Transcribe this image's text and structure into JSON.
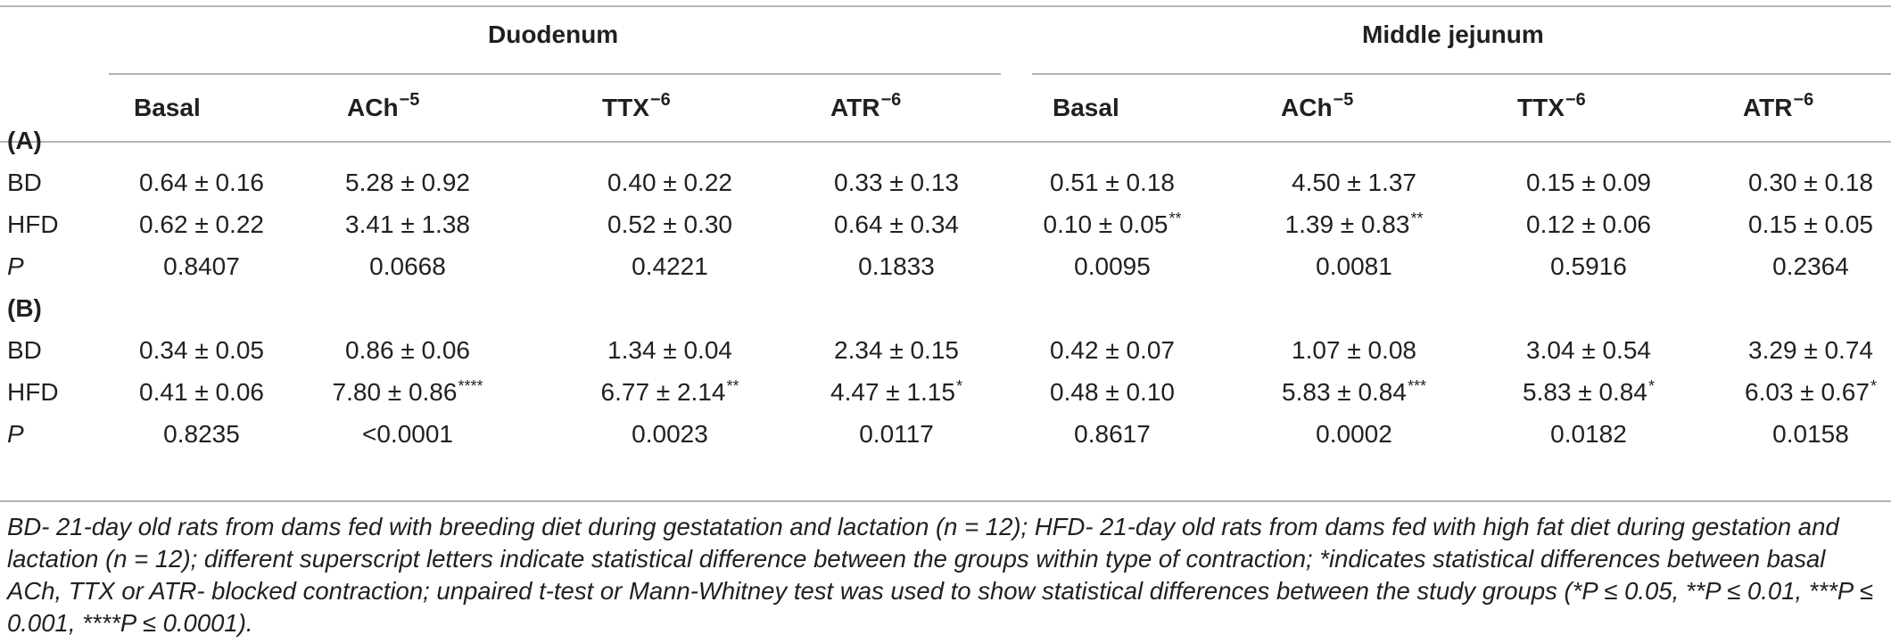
{
  "groups": {
    "duodenum": "Duodenum",
    "jejunum": "Middle jejunum"
  },
  "columns": [
    {
      "base": "Basal",
      "exp": ""
    },
    {
      "base": "ACh",
      "exp": "−5"
    },
    {
      "base": "TTX",
      "exp": "−6"
    },
    {
      "base": "ATR",
      "exp": "−6"
    },
    {
      "base": "Basal",
      "exp": ""
    },
    {
      "base": "ACh",
      "exp": "−5"
    },
    {
      "base": "TTX",
      "exp": "−6"
    },
    {
      "base": "ATR",
      "exp": "−6"
    }
  ],
  "sections": [
    {
      "label": "(A)",
      "rows": [
        {
          "label": "BD",
          "italic": false,
          "cells": [
            {
              "v": "0.64 ± 0.16",
              "s": ""
            },
            {
              "v": "5.28 ± 0.92",
              "s": ""
            },
            {
              "v": "0.40 ± 0.22",
              "s": ""
            },
            {
              "v": "0.33 ± 0.13",
              "s": ""
            },
            {
              "v": "0.51 ± 0.18",
              "s": ""
            },
            {
              "v": "4.50 ± 1.37",
              "s": ""
            },
            {
              "v": "0.15 ± 0.09",
              "s": ""
            },
            {
              "v": "0.30 ± 0.18",
              "s": ""
            }
          ]
        },
        {
          "label": "HFD",
          "italic": false,
          "cells": [
            {
              "v": "0.62 ± 0.22",
              "s": ""
            },
            {
              "v": "3.41 ± 1.38",
              "s": ""
            },
            {
              "v": "0.52 ± 0.30",
              "s": ""
            },
            {
              "v": "0.64 ± 0.34",
              "s": ""
            },
            {
              "v": "0.10 ± 0.05",
              "s": "**"
            },
            {
              "v": "1.39 ± 0.83",
              "s": "**"
            },
            {
              "v": "0.12 ± 0.06",
              "s": ""
            },
            {
              "v": "0.15 ± 0.05",
              "s": ""
            }
          ]
        },
        {
          "label": "P",
          "italic": true,
          "cells": [
            {
              "v": "0.8407",
              "s": ""
            },
            {
              "v": "0.0668",
              "s": ""
            },
            {
              "v": "0.4221",
              "s": ""
            },
            {
              "v": "0.1833",
              "s": ""
            },
            {
              "v": "0.0095",
              "s": ""
            },
            {
              "v": "0.0081",
              "s": ""
            },
            {
              "v": "0.5916",
              "s": ""
            },
            {
              "v": "0.2364",
              "s": ""
            }
          ]
        }
      ]
    },
    {
      "label": "(B)",
      "rows": [
        {
          "label": "BD",
          "italic": false,
          "cells": [
            {
              "v": "0.34 ± 0.05",
              "s": ""
            },
            {
              "v": "0.86 ± 0.06",
              "s": ""
            },
            {
              "v": "1.34 ± 0.04",
              "s": ""
            },
            {
              "v": "2.34 ± 0.15",
              "s": ""
            },
            {
              "v": "0.42 ± 0.07",
              "s": ""
            },
            {
              "v": "1.07 ± 0.08",
              "s": ""
            },
            {
              "v": "3.04 ± 0.54",
              "s": ""
            },
            {
              "v": "3.29 ± 0.74",
              "s": ""
            }
          ]
        },
        {
          "label": "HFD",
          "italic": false,
          "cells": [
            {
              "v": "0.41 ± 0.06",
              "s": ""
            },
            {
              "v": "7.80 ± 0.86",
              "s": "****"
            },
            {
              "v": "6.77 ± 2.14",
              "s": "**"
            },
            {
              "v": "4.47 ± 1.15",
              "s": "*"
            },
            {
              "v": "0.48 ± 0.10",
              "s": ""
            },
            {
              "v": "5.83 ± 0.84",
              "s": "***"
            },
            {
              "v": "5.83 ± 0.84",
              "s": "*"
            },
            {
              "v": "6.03 ± 0.67",
              "s": "*"
            }
          ]
        },
        {
          "label": "P",
          "italic": true,
          "cells": [
            {
              "v": "0.8235",
              "s": ""
            },
            {
              "v": "<0.0001",
              "s": ""
            },
            {
              "v": "0.0023",
              "s": ""
            },
            {
              "v": "0.0117",
              "s": ""
            },
            {
              "v": "0.8617",
              "s": ""
            },
            {
              "v": "0.0002",
              "s": ""
            },
            {
              "v": "0.0182",
              "s": ""
            },
            {
              "v": "0.0158",
              "s": ""
            }
          ]
        }
      ]
    }
  ],
  "footnote": "BD- 21-day old rats from dams fed with breeding diet during gestatation and lactation (n = 12); HFD- 21-day old rats from dams fed with high fat diet during gestation and lactation (n = 12); different superscript letters indicate statistical difference between the groups within type of contraction; *indicates statistical differences between basal ACh, TTX or ATR- blocked contraction; unpaired t-test or Mann-Whitney test was used to show statistical differences between the study groups (*P ≤ 0.05, **P ≤ 0.01, ***P ≤ 0.001, ****P ≤ 0.0001)."
}
